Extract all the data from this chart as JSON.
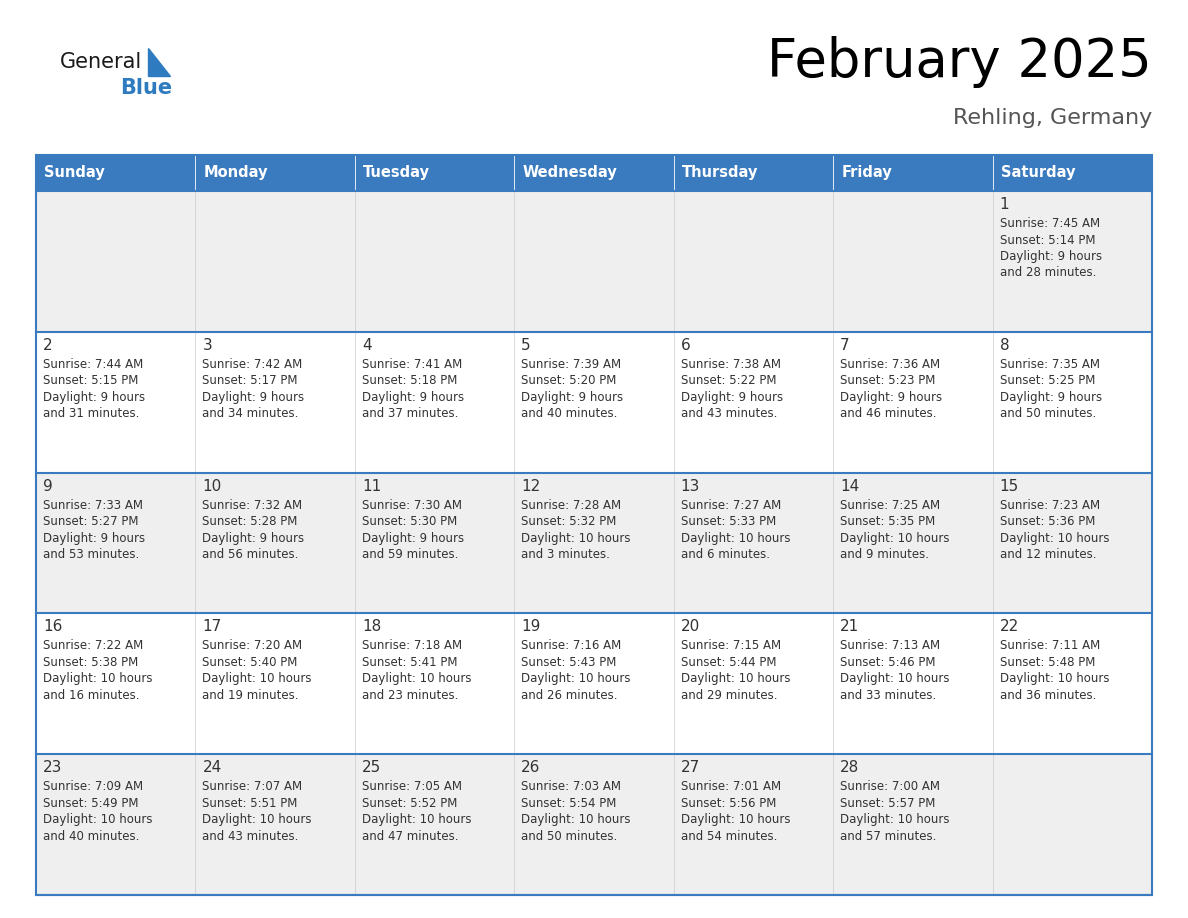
{
  "title": "February 2025",
  "subtitle": "Rehling, Germany",
  "days_of_week": [
    "Sunday",
    "Monday",
    "Tuesday",
    "Wednesday",
    "Thursday",
    "Friday",
    "Saturday"
  ],
  "header_bg_color": "#3a7abf",
  "header_text_color": "#ffffff",
  "cell_bg_light": "#efefef",
  "cell_bg_white": "#ffffff",
  "cell_text_color": "#333333",
  "day_num_color": "#333333",
  "border_color": "#3a7abf",
  "row_divider_color": "#3a7abf",
  "logo_general_color": "#1a1a1a",
  "logo_blue_color": "#2e7bbf",
  "logo_triangle_color": "#2e7bbf",
  "calendar_data": [
    [
      null,
      null,
      null,
      null,
      null,
      null,
      {
        "day": 1,
        "sunrise": "7:45 AM",
        "sunset": "5:14 PM",
        "daylight": "9 hours\nand 28 minutes."
      }
    ],
    [
      {
        "day": 2,
        "sunrise": "7:44 AM",
        "sunset": "5:15 PM",
        "daylight": "9 hours\nand 31 minutes."
      },
      {
        "day": 3,
        "sunrise": "7:42 AM",
        "sunset": "5:17 PM",
        "daylight": "9 hours\nand 34 minutes."
      },
      {
        "day": 4,
        "sunrise": "7:41 AM",
        "sunset": "5:18 PM",
        "daylight": "9 hours\nand 37 minutes."
      },
      {
        "day": 5,
        "sunrise": "7:39 AM",
        "sunset": "5:20 PM",
        "daylight": "9 hours\nand 40 minutes."
      },
      {
        "day": 6,
        "sunrise": "7:38 AM",
        "sunset": "5:22 PM",
        "daylight": "9 hours\nand 43 minutes."
      },
      {
        "day": 7,
        "sunrise": "7:36 AM",
        "sunset": "5:23 PM",
        "daylight": "9 hours\nand 46 minutes."
      },
      {
        "day": 8,
        "sunrise": "7:35 AM",
        "sunset": "5:25 PM",
        "daylight": "9 hours\nand 50 minutes."
      }
    ],
    [
      {
        "day": 9,
        "sunrise": "7:33 AM",
        "sunset": "5:27 PM",
        "daylight": "9 hours\nand 53 minutes."
      },
      {
        "day": 10,
        "sunrise": "7:32 AM",
        "sunset": "5:28 PM",
        "daylight": "9 hours\nand 56 minutes."
      },
      {
        "day": 11,
        "sunrise": "7:30 AM",
        "sunset": "5:30 PM",
        "daylight": "9 hours\nand 59 minutes."
      },
      {
        "day": 12,
        "sunrise": "7:28 AM",
        "sunset": "5:32 PM",
        "daylight": "10 hours\nand 3 minutes."
      },
      {
        "day": 13,
        "sunrise": "7:27 AM",
        "sunset": "5:33 PM",
        "daylight": "10 hours\nand 6 minutes."
      },
      {
        "day": 14,
        "sunrise": "7:25 AM",
        "sunset": "5:35 PM",
        "daylight": "10 hours\nand 9 minutes."
      },
      {
        "day": 15,
        "sunrise": "7:23 AM",
        "sunset": "5:36 PM",
        "daylight": "10 hours\nand 12 minutes."
      }
    ],
    [
      {
        "day": 16,
        "sunrise": "7:22 AM",
        "sunset": "5:38 PM",
        "daylight": "10 hours\nand 16 minutes."
      },
      {
        "day": 17,
        "sunrise": "7:20 AM",
        "sunset": "5:40 PM",
        "daylight": "10 hours\nand 19 minutes."
      },
      {
        "day": 18,
        "sunrise": "7:18 AM",
        "sunset": "5:41 PM",
        "daylight": "10 hours\nand 23 minutes."
      },
      {
        "day": 19,
        "sunrise": "7:16 AM",
        "sunset": "5:43 PM",
        "daylight": "10 hours\nand 26 minutes."
      },
      {
        "day": 20,
        "sunrise": "7:15 AM",
        "sunset": "5:44 PM",
        "daylight": "10 hours\nand 29 minutes."
      },
      {
        "day": 21,
        "sunrise": "7:13 AM",
        "sunset": "5:46 PM",
        "daylight": "10 hours\nand 33 minutes."
      },
      {
        "day": 22,
        "sunrise": "7:11 AM",
        "sunset": "5:48 PM",
        "daylight": "10 hours\nand 36 minutes."
      }
    ],
    [
      {
        "day": 23,
        "sunrise": "7:09 AM",
        "sunset": "5:49 PM",
        "daylight": "10 hours\nand 40 minutes."
      },
      {
        "day": 24,
        "sunrise": "7:07 AM",
        "sunset": "5:51 PM",
        "daylight": "10 hours\nand 43 minutes."
      },
      {
        "day": 25,
        "sunrise": "7:05 AM",
        "sunset": "5:52 PM",
        "daylight": "10 hours\nand 47 minutes."
      },
      {
        "day": 26,
        "sunrise": "7:03 AM",
        "sunset": "5:54 PM",
        "daylight": "10 hours\nand 50 minutes."
      },
      {
        "day": 27,
        "sunrise": "7:01 AM",
        "sunset": "5:56 PM",
        "daylight": "10 hours\nand 54 minutes."
      },
      {
        "day": 28,
        "sunrise": "7:00 AM",
        "sunset": "5:57 PM",
        "daylight": "10 hours\nand 57 minutes."
      },
      null
    ]
  ]
}
